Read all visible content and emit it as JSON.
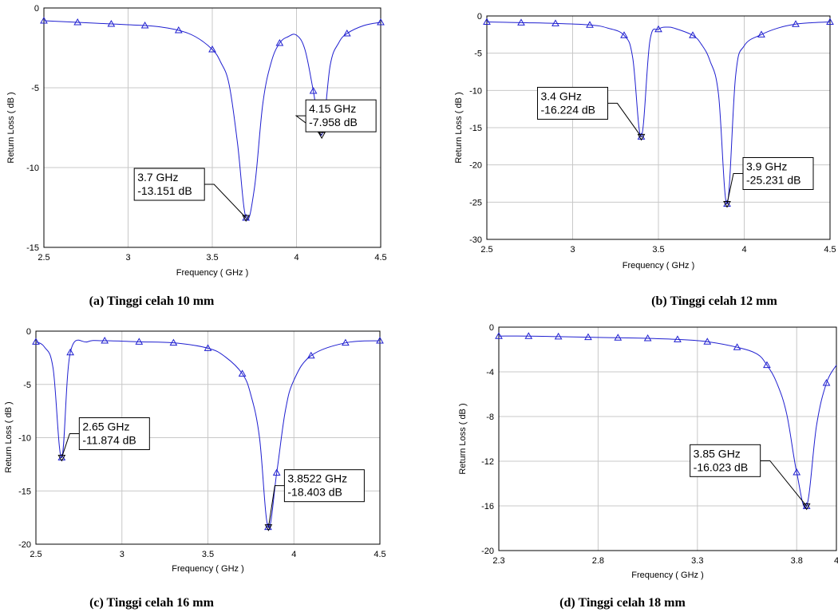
{
  "chart_data": [
    {
      "type": "line",
      "caption": "(a)  Tinggi celah 10 mm",
      "xlabel": "Frequency ( GHz )",
      "ylabel": "Return Loss ( dB )",
      "xlim": [
        2.5,
        4.5
      ],
      "ylim": [
        -15,
        0
      ],
      "xticks": [
        "2.5",
        "3",
        "3.5",
        "4",
        "4.5"
      ],
      "yticks": [
        "0",
        "-5",
        "-10",
        "-15"
      ],
      "grid": true,
      "line_color": "#1f1fd0",
      "series": [
        {
          "x": [
            2.5,
            2.7,
            2.9,
            3.1,
            3.2,
            3.3,
            3.4,
            3.5,
            3.55,
            3.6,
            3.65,
            3.7,
            3.75,
            3.8,
            3.85,
            3.9,
            3.95,
            4.0,
            4.05,
            4.1,
            4.15,
            4.2,
            4.25,
            4.3,
            4.4,
            4.5
          ],
          "y": [
            -0.8,
            -0.9,
            -1.0,
            -1.1,
            -1.2,
            -1.4,
            -1.8,
            -2.6,
            -3.4,
            -4.8,
            -8.5,
            -13.151,
            -11.3,
            -6.0,
            -3.4,
            -2.2,
            -1.8,
            -1.7,
            -2.6,
            -5.2,
            -7.958,
            -3.6,
            -2.2,
            -1.6,
            -1.1,
            -0.9
          ]
        }
      ],
      "markers_x": [
        2.5,
        2.7,
        2.9,
        3.1,
        3.3,
        3.5,
        3.7,
        3.9,
        4.1,
        4.3,
        4.5
      ],
      "markers_y": [
        -0.8,
        -0.9,
        -1.0,
        -1.1,
        -1.4,
        -2.6,
        -13.151,
        -2.2,
        -5.2,
        -1.6,
        -0.9
      ],
      "callouts": [
        {
          "x": 3.7,
          "y": -13.151,
          "lines": [
            "3.7 GHz",
            " -13.151 dB"
          ],
          "side": "left"
        },
        {
          "x": 4.15,
          "y": -7.958,
          "lines": [
            "4.15 GHz",
            " -7.958 dB"
          ],
          "side": "right"
        }
      ]
    },
    {
      "type": "line",
      "caption": "(b)  Tinggi celah 12 mm",
      "xlabel": "Frequency ( GHz )",
      "ylabel": "Return Loss ( dB )",
      "xlim": [
        2.5,
        4.5
      ],
      "ylim": [
        -30,
        0
      ],
      "xticks": [
        "2.5",
        "3",
        "3.5",
        "4",
        "4.5"
      ],
      "yticks": [
        "0",
        "-5",
        "-10",
        "-15",
        "-20",
        "-25",
        "-30"
      ],
      "grid": true,
      "line_color": "#1f1fd0",
      "series": [
        {
          "x": [
            2.5,
            2.7,
            2.9,
            3.1,
            3.2,
            3.3,
            3.35,
            3.4,
            3.45,
            3.5,
            3.55,
            3.6,
            3.7,
            3.75,
            3.8,
            3.85,
            3.9,
            3.95,
            4.0,
            4.1,
            4.2,
            4.3,
            4.4,
            4.5
          ],
          "y": [
            -0.8,
            -0.9,
            -1.0,
            -1.2,
            -1.6,
            -2.6,
            -5.6,
            -16.224,
            -3.4,
            -1.8,
            -1.5,
            -1.7,
            -2.6,
            -3.8,
            -6.0,
            -10.5,
            -25.231,
            -8.0,
            -4.0,
            -2.5,
            -1.6,
            -1.1,
            -0.9,
            -0.8
          ]
        }
      ],
      "markers_x": [
        2.5,
        2.7,
        2.9,
        3.1,
        3.3,
        3.4,
        3.5,
        3.7,
        3.9,
        4.1,
        4.3,
        4.5
      ],
      "markers_y": [
        -0.8,
        -0.9,
        -1.0,
        -1.2,
        -2.6,
        -16.224,
        -1.8,
        -2.6,
        -25.231,
        -2.5,
        -1.1,
        -0.8
      ],
      "callouts": [
        {
          "x": 3.4,
          "y": -16.224,
          "lines": [
            "3.4 GHz",
            " -16.224 dB"
          ],
          "side": "left"
        },
        {
          "x": 3.9,
          "y": -25.231,
          "lines": [
            "3.9 GHz",
            " -25.231 dB"
          ],
          "side": "right"
        }
      ]
    },
    {
      "type": "line",
      "caption": "(c) Tinggi celah 16 mm",
      "xlabel": "Frequency ( GHz )",
      "ylabel": "Return Loss ( dB )",
      "xlim": [
        2.5,
        4.5
      ],
      "ylim": [
        -20,
        0
      ],
      "xticks": [
        "2.5",
        "3",
        "3.5",
        "4",
        "4.5"
      ],
      "yticks": [
        "0",
        "-5",
        "-10",
        "-15",
        "-20"
      ],
      "grid": true,
      "line_color": "#1f1fd0",
      "series": [
        {
          "x": [
            2.5,
            2.55,
            2.6,
            2.65,
            2.7,
            2.8,
            2.9,
            3.1,
            3.3,
            3.5,
            3.6,
            3.7,
            3.75,
            3.8,
            3.85,
            3.9,
            3.95,
            4.0,
            4.1,
            4.3,
            4.5
          ],
          "y": [
            -1.0,
            -1.5,
            -3.5,
            -11.874,
            -2.0,
            -1.0,
            -0.9,
            -1.0,
            -1.1,
            -1.6,
            -2.4,
            -4.0,
            -6.0,
            -10.0,
            -18.403,
            -13.3,
            -7.5,
            -4.6,
            -2.3,
            -1.1,
            -0.9
          ]
        }
      ],
      "markers_x": [
        2.5,
        2.65,
        2.7,
        2.9,
        3.1,
        3.3,
        3.5,
        3.7,
        3.85,
        3.9,
        4.1,
        4.3,
        4.5
      ],
      "markers_y": [
        -1.0,
        -11.874,
        -2.0,
        -0.9,
        -1.0,
        -1.1,
        -1.6,
        -4.0,
        -18.403,
        -13.3,
        -2.3,
        -1.1,
        -0.9
      ],
      "callouts": [
        {
          "x": 2.65,
          "y": -11.874,
          "lines": [
            "2.65 GHz",
            " -11.874 dB"
          ],
          "side": "right"
        },
        {
          "x": 3.8522,
          "y": -18.403,
          "lines": [
            "3.8522 GHz",
            " -18.403 dB"
          ],
          "side": "right"
        }
      ]
    },
    {
      "type": "line",
      "caption": "(d) Tinggi celah 18 mm",
      "xlabel": "Frequency ( GHz )",
      "ylabel": "Return Loss ( dB )",
      "xlim": [
        2.3,
        4.0
      ],
      "ylim": [
        -20,
        0
      ],
      "xticks": [
        "2.3",
        "2.8",
        "3.3",
        "3.8",
        "4"
      ],
      "xtick_values": [
        2.3,
        2.8,
        3.3,
        3.8,
        4.0
      ],
      "yticks": [
        "0",
        "-4",
        "-8",
        "-12",
        "-16",
        "-20"
      ],
      "grid": true,
      "line_color": "#1f1fd0",
      "series": [
        {
          "x": [
            2.3,
            2.45,
            2.6,
            2.75,
            2.9,
            3.05,
            3.2,
            3.35,
            3.5,
            3.6,
            3.65,
            3.7,
            3.75,
            3.8,
            3.85,
            3.9,
            3.95,
            4.0
          ],
          "y": [
            -0.8,
            -0.8,
            -0.85,
            -0.9,
            -0.95,
            -1.0,
            -1.1,
            -1.3,
            -1.8,
            -2.4,
            -3.4,
            -5.0,
            -7.8,
            -13.0,
            -16.023,
            -8.8,
            -5.0,
            -3.4
          ]
        }
      ],
      "markers_x": [
        2.3,
        2.45,
        2.6,
        2.75,
        2.9,
        3.05,
        3.2,
        3.35,
        3.5,
        3.65,
        3.8,
        3.85,
        3.95
      ],
      "markers_y": [
        -0.8,
        -0.8,
        -0.85,
        -0.9,
        -0.95,
        -1.0,
        -1.1,
        -1.3,
        -1.8,
        -3.4,
        -13.0,
        -16.023,
        -5.0
      ],
      "callouts": [
        {
          "x": 3.85,
          "y": -16.023,
          "lines": [
            "3.85 GHz",
            " -16.023 dB"
          ],
          "side": "left"
        }
      ]
    }
  ]
}
